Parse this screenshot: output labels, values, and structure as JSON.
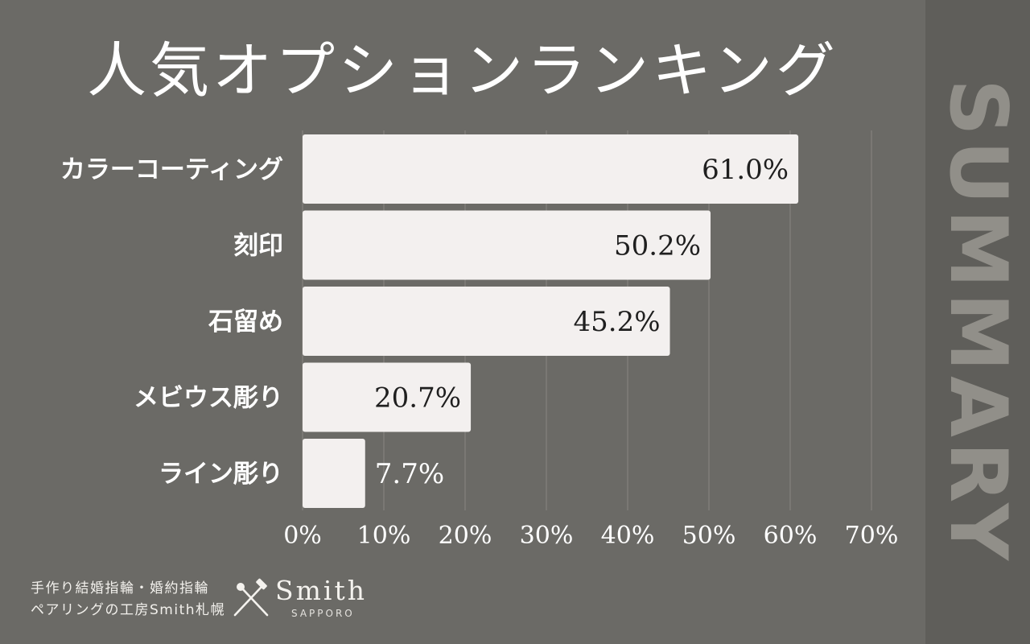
{
  "header": {
    "title": "人気オプションランキング"
  },
  "side": {
    "label": "SUMMARY"
  },
  "chart_data": {
    "type": "bar",
    "orientation": "horizontal",
    "title": "人気オプションランキング",
    "categories": [
      "カラーコーティング",
      "刻印",
      "石留め",
      "メビウス彫り",
      "ライン彫り"
    ],
    "values": [
      61.0,
      50.2,
      45.2,
      20.7,
      7.7
    ],
    "value_labels": [
      "61.0%",
      "50.2%",
      "45.2%",
      "20.7%",
      "7.7%"
    ],
    "xlim": [
      0,
      70
    ],
    "x_ticks": [
      0,
      10,
      20,
      30,
      40,
      50,
      60,
      70
    ],
    "x_tick_labels": [
      "0%",
      "10%",
      "20%",
      "30%",
      "40%",
      "50%",
      "60%",
      "70%"
    ],
    "grid": true,
    "xlabel": "",
    "ylabel": "",
    "colors": {
      "bar": "#f3f0ef",
      "background": "#6b6a66",
      "grid": "#898782",
      "side_band": "#5f5e5a"
    }
  },
  "footer": {
    "tagline_line1": "手作り結婚指輪・婚約指輪",
    "tagline_line2": "ペアリングの工房Smith札幌",
    "logo_name": "Smith",
    "logo_sub": "SAPPORO",
    "logo_icon": "crossed-tools-icon"
  }
}
